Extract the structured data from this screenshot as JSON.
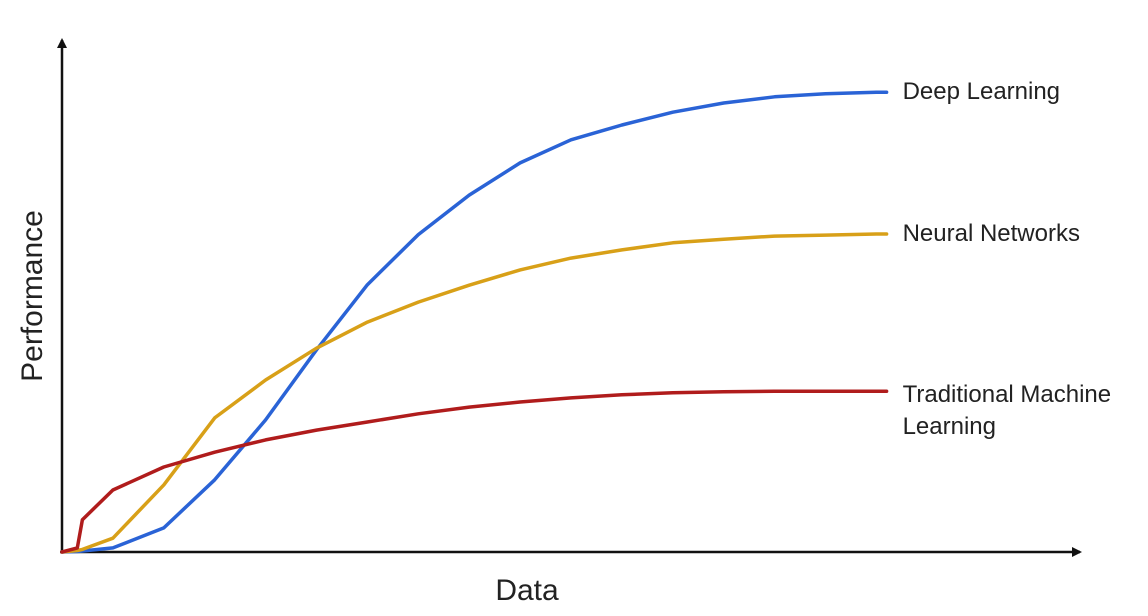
{
  "chart_data": {
    "type": "line",
    "x_label": "Data",
    "y_label": "Performance",
    "xlim": [
      0,
      100
    ],
    "ylim": [
      0,
      100
    ],
    "x": [
      0,
      1.5,
      2,
      5,
      10,
      15,
      20,
      25,
      30,
      35,
      40,
      45,
      50,
      55,
      60,
      65,
      70,
      75,
      80,
      81
    ],
    "series": [
      {
        "name": "Deep Learning",
        "color": "#2a63d6",
        "values": [
          0,
          0.1,
          0.2,
          0.8,
          4.7,
          14.1,
          25.8,
          39.5,
          52.2,
          62,
          69.7,
          76,
          80.5,
          83.4,
          85.9,
          87.7,
          88.9,
          89.5,
          89.8,
          89.8
        ]
      },
      {
        "name": "Neural Networks",
        "color": "#d8a018",
        "values": [
          0,
          0.3,
          0.5,
          2.7,
          13.1,
          26.2,
          33.6,
          39.8,
          44.9,
          48.8,
          52.1,
          55.1,
          57.4,
          59,
          60.4,
          61.1,
          61.7,
          61.9,
          62.1,
          62.1
        ]
      },
      {
        "name": "Traditional Machine Learning",
        "color": "#b01c1c",
        "values": [
          0,
          0.8,
          6.3,
          12.1,
          16.6,
          19.5,
          21.9,
          23.8,
          25.4,
          27,
          28.3,
          29.3,
          30.1,
          30.7,
          31.1,
          31.3,
          31.4,
          31.4,
          31.4,
          31.4
        ]
      }
    ]
  }
}
